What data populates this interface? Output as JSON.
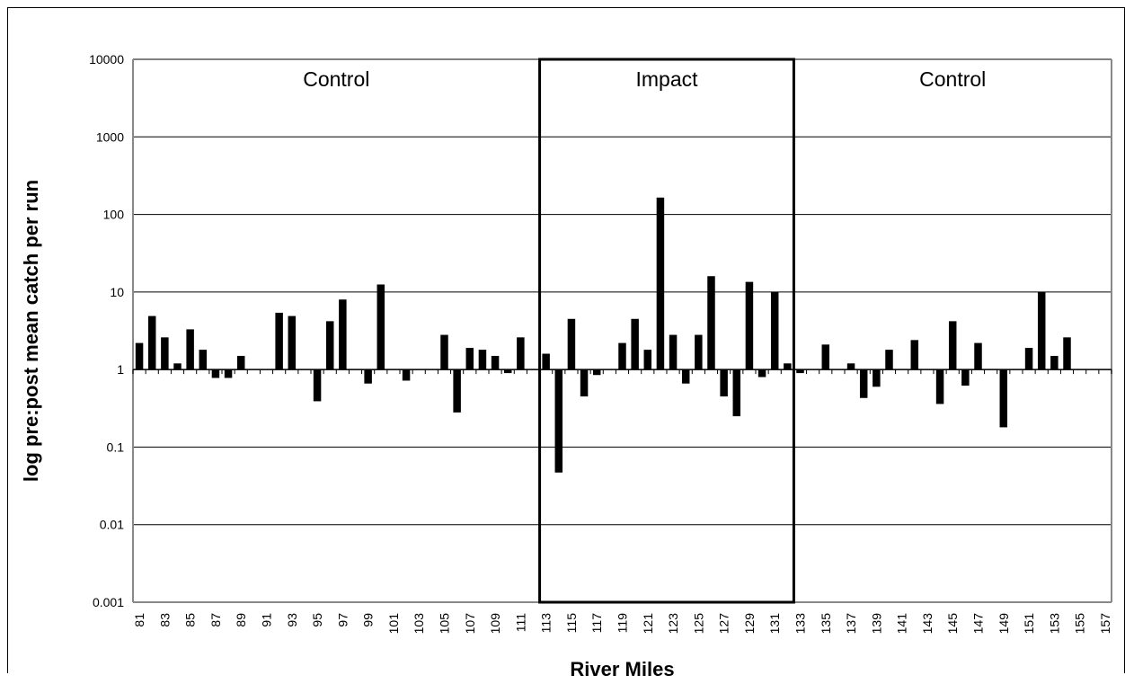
{
  "chart_data": {
    "type": "bar",
    "title": "",
    "xlabel": "River Miles",
    "ylabel": "log pre:post mean catch per run",
    "y_scale": "log",
    "ylim": [
      0.001,
      10000
    ],
    "baseline": 1,
    "y_ticks": [
      "0.001",
      "0.01",
      "0.1",
      "1",
      "10",
      "100",
      "1000",
      "10000"
    ],
    "grid": true,
    "legend": "none",
    "bar_color": "#000000",
    "regions": [
      {
        "label": "Control",
        "from": 81,
        "to": 112,
        "outlined": false
      },
      {
        "label": "Impact",
        "from": 113,
        "to": 132,
        "outlined": true
      },
      {
        "label": "Control",
        "from": 133,
        "to": 157,
        "outlined": false
      }
    ],
    "categories": [
      "81",
      "82",
      "83",
      "84",
      "85",
      "86",
      "87",
      "88",
      "89",
      "90",
      "91",
      "92",
      "93",
      "94",
      "95",
      "96",
      "97",
      "98",
      "99",
      "100",
      "101",
      "102",
      "103",
      "104",
      "105",
      "106",
      "107",
      "108",
      "109",
      "110",
      "111",
      "112",
      "113",
      "114",
      "115",
      "116",
      "117",
      "118",
      "119",
      "120",
      "121",
      "122",
      "123",
      "124",
      "125",
      "126",
      "127",
      "128",
      "129",
      "130",
      "131",
      "132",
      "133",
      "134",
      "135",
      "136",
      "137",
      "138",
      "139",
      "140",
      "141",
      "142",
      "143",
      "144",
      "145",
      "146",
      "147",
      "148",
      "149",
      "150",
      "151",
      "152",
      "153",
      "154",
      "155",
      "156",
      "157"
    ],
    "tick_labels": [
      "81",
      "83",
      "85",
      "87",
      "89",
      "91",
      "93",
      "95",
      "97",
      "99",
      "101",
      "103",
      "105",
      "107",
      "109",
      "111",
      "113",
      "115",
      "117",
      "119",
      "121",
      "123",
      "125",
      "127",
      "129",
      "131",
      "133",
      "135",
      "137",
      "139",
      "141",
      "143",
      "145",
      "147",
      "149",
      "151",
      "153",
      "155",
      "157"
    ],
    "values": [
      2.2,
      4.9,
      2.6,
      1.2,
      3.3,
      1.8,
      0.78,
      0.78,
      1.5,
      null,
      null,
      5.4,
      4.9,
      null,
      0.39,
      4.2,
      8.0,
      null,
      0.66,
      12.5,
      null,
      0.72,
      null,
      null,
      2.8,
      0.28,
      1.9,
      1.8,
      1.5,
      0.9,
      2.6,
      null,
      1.6,
      0.047,
      4.5,
      0.45,
      0.85,
      null,
      2.2,
      4.5,
      1.8,
      165,
      2.8,
      0.66,
      2.8,
      16,
      0.45,
      0.25,
      13.5,
      0.8,
      10,
      1.2,
      0.9,
      null,
      2.1,
      null,
      1.2,
      0.43,
      0.6,
      1.8,
      null,
      2.4,
      null,
      0.36,
      4.2,
      0.62,
      2.2,
      null,
      0.18,
      null,
      1.9,
      10,
      1.5,
      2.6,
      null,
      null,
      null
    ]
  }
}
